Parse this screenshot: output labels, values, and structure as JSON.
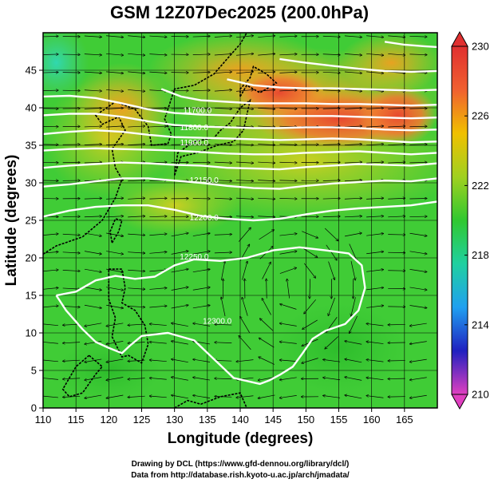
{
  "title": "GSM 12Z07Dec2025 (200.0hPa)",
  "xlabel": "Longitude (degrees)",
  "ylabel": "Latitude  (degrees)",
  "credits": [
    "Drawing by DCL (https://www.gfd-dennou.org/library/dcl/)",
    "Data from http://database.rish.kyoto-u.ac.jp/arch/jmadata/"
  ],
  "chart_data": {
    "type": "heatmap",
    "xlim": [
      110,
      170
    ],
    "ylim": [
      0,
      50
    ],
    "xticks": [
      "110",
      "115",
      "120",
      "125",
      "130",
      "135",
      "140",
      "145",
      "150",
      "155",
      "160",
      "165"
    ],
    "yticks": [
      "0",
      "5",
      "10",
      "15",
      "20",
      "25",
      "30",
      "35",
      "40",
      "45"
    ],
    "colorbar": {
      "ticks": [
        "210",
        "214",
        "218",
        "222",
        "226",
        "230"
      ],
      "range": [
        210,
        230
      ],
      "colors": [
        "#e040c0",
        "#2020c0",
        "#20a0f0",
        "#20d0a0",
        "#30c830",
        "#a0d020",
        "#f0c000",
        "#f06030",
        "#e03030"
      ]
    },
    "grid": true,
    "contour_labels": [
      {
        "text": "12300.0",
        "lon": 136.5,
        "lat": 11.2
      },
      {
        "text": "12250.0",
        "lon": 133.0,
        "lat": 19.8
      },
      {
        "text": "12200.0",
        "lon": 134.5,
        "lat": 25.0
      },
      {
        "text": "12150.0",
        "lon": 134.5,
        "lat": 30.0
      },
      {
        "text": "11700.0",
        "lon": 133.5,
        "lat": 39.3
      },
      {
        "text": "11800.0",
        "lon": 133.0,
        "lat": 37.0
      },
      {
        "text": "11900.0",
        "lon": 133.0,
        "lat": 35.0
      }
    ],
    "contours": [
      {
        "name": "c12300",
        "points": [
          [
            112,
            15
          ],
          [
            115,
            15.5
          ],
          [
            118,
            17
          ],
          [
            121,
            17.6
          ],
          [
            124,
            17.2
          ],
          [
            127,
            17.5
          ],
          [
            130,
            19
          ],
          [
            133,
            19.8
          ],
          [
            137,
            19.6
          ],
          [
            141,
            20
          ],
          [
            145,
            21
          ],
          [
            149,
            21.4
          ],
          [
            153,
            21
          ],
          [
            156.5,
            20.6
          ],
          [
            158.5,
            19
          ],
          [
            159,
            16
          ],
          [
            158,
            13
          ],
          [
            156,
            11.2
          ],
          [
            153,
            10.3
          ],
          [
            151,
            9.2
          ],
          [
            149.5,
            7.3
          ],
          [
            148,
            5.5
          ],
          [
            146,
            4.4
          ],
          [
            144.5,
            3.7
          ],
          [
            143,
            3.2
          ],
          [
            139,
            4
          ],
          [
            136,
            6.5
          ],
          [
            133,
            9
          ],
          [
            129,
            10
          ],
          [
            125,
            9.6
          ],
          [
            123.2,
            8.3
          ],
          [
            122,
            7.3
          ],
          [
            120,
            8
          ],
          [
            118,
            8.8
          ],
          [
            116,
            10.5
          ],
          [
            115,
            11.5
          ],
          [
            113.5,
            13
          ],
          [
            112,
            15
          ]
        ]
      },
      {
        "name": "c12250",
        "points": [
          [
            110,
            25.5
          ],
          [
            114,
            26.3
          ],
          [
            118,
            26.8
          ],
          [
            122,
            27
          ],
          [
            126,
            27
          ],
          [
            130,
            26.4
          ],
          [
            134,
            25.6
          ],
          [
            138,
            25.2
          ],
          [
            142,
            25
          ],
          [
            146,
            25.2
          ],
          [
            150,
            25.8
          ],
          [
            154,
            26.3
          ],
          [
            158,
            26.6
          ],
          [
            162,
            26.8
          ],
          [
            166,
            27
          ],
          [
            170,
            27.5
          ]
        ]
      },
      {
        "name": "c12200",
        "points": [
          [
            110,
            29.5
          ],
          [
            114,
            29.8
          ],
          [
            118,
            30.2
          ],
          [
            122,
            30.6
          ],
          [
            126,
            30.6
          ],
          [
            130,
            30.3
          ],
          [
            134,
            30
          ],
          [
            138,
            29.6
          ],
          [
            142,
            29.3
          ],
          [
            146,
            29.2
          ],
          [
            150,
            29.6
          ],
          [
            154,
            29.9
          ],
          [
            158,
            30.1
          ],
          [
            162,
            30.3
          ],
          [
            166,
            30.2
          ],
          [
            170,
            30.6
          ]
        ]
      },
      {
        "name": "c12150",
        "points": [
          [
            110,
            32
          ],
          [
            114,
            32.3
          ],
          [
            118,
            32.5
          ],
          [
            122,
            32.7
          ],
          [
            126,
            32.6
          ],
          [
            130,
            32.4
          ],
          [
            134,
            32.3
          ],
          [
            138,
            32
          ],
          [
            142,
            31.9
          ],
          [
            146,
            31.8
          ],
          [
            150,
            32.1
          ],
          [
            154,
            32.3
          ],
          [
            158,
            32.5
          ],
          [
            162,
            32.4
          ],
          [
            166,
            32.3
          ],
          [
            170,
            32.6
          ]
        ]
      },
      {
        "name": "c12100",
        "points": [
          [
            110,
            34.3
          ],
          [
            114,
            34.5
          ],
          [
            118,
            34.6
          ],
          [
            122,
            34.5
          ],
          [
            126,
            34.4
          ],
          [
            130,
            34.3
          ],
          [
            134,
            34.1
          ],
          [
            138,
            33.9
          ],
          [
            142,
            33.8
          ],
          [
            146,
            33.8
          ],
          [
            150,
            34
          ],
          [
            154,
            34.1
          ],
          [
            158,
            34.2
          ],
          [
            162,
            34
          ],
          [
            166,
            33.8
          ],
          [
            170,
            34
          ]
        ]
      },
      {
        "name": "c12000",
        "points": [
          [
            110,
            36.5
          ],
          [
            114,
            36.8
          ],
          [
            118,
            37
          ],
          [
            122,
            36.8
          ],
          [
            126,
            36.4
          ],
          [
            130,
            36.1
          ],
          [
            134,
            36
          ],
          [
            138,
            35.9
          ],
          [
            142,
            35.8
          ],
          [
            146,
            35.7
          ],
          [
            150,
            35.8
          ],
          [
            154,
            35.9
          ],
          [
            158,
            35.8
          ],
          [
            162,
            35.6
          ],
          [
            166,
            35.4
          ],
          [
            170,
            35.5
          ]
        ]
      },
      {
        "name": "c11900",
        "points": [
          [
            110,
            39
          ],
          [
            114,
            39.2
          ],
          [
            118,
            39.2
          ],
          [
            122,
            38.8
          ],
          [
            126,
            38.2
          ],
          [
            130,
            37.7
          ],
          [
            134,
            37.5
          ],
          [
            138,
            37.4
          ],
          [
            142,
            37.3
          ],
          [
            146,
            37.3
          ],
          [
            150,
            37.4
          ],
          [
            154,
            37.4
          ],
          [
            158,
            37.3
          ],
          [
            162,
            37.1
          ],
          [
            166,
            37
          ],
          [
            170,
            37.1
          ]
        ]
      },
      {
        "name": "c11800",
        "points": [
          [
            110,
            41.5
          ],
          [
            114,
            41.6
          ],
          [
            118,
            41.3
          ],
          [
            122,
            40.6
          ],
          [
            126,
            39.8
          ],
          [
            130,
            39.3
          ],
          [
            134,
            39.1
          ],
          [
            138,
            39
          ],
          [
            142,
            38.9
          ],
          [
            146,
            38.9
          ],
          [
            150,
            38.9
          ],
          [
            154,
            38.9
          ],
          [
            158,
            38.8
          ],
          [
            162,
            38.7
          ],
          [
            166,
            38.6
          ],
          [
            170,
            38.7
          ]
        ]
      },
      {
        "name": "c11700",
        "points": [
          [
            128,
            42.5
          ],
          [
            131,
            41.5
          ],
          [
            134,
            41
          ],
          [
            138,
            40.8
          ],
          [
            142,
            40.6
          ],
          [
            146,
            40.6
          ],
          [
            150,
            40.6
          ],
          [
            154,
            40.5
          ],
          [
            158,
            40.5
          ],
          [
            162,
            40.4
          ],
          [
            166,
            40.3
          ],
          [
            170,
            40.4
          ]
        ]
      },
      {
        "name": "c11600",
        "points": [
          [
            138,
            43.8
          ],
          [
            142,
            43
          ],
          [
            146,
            42.7
          ],
          [
            150,
            42.6
          ],
          [
            154,
            42.6
          ],
          [
            158,
            42.5
          ],
          [
            162,
            42.4
          ],
          [
            166,
            42.3
          ],
          [
            170,
            42.4
          ]
        ]
      },
      {
        "name": "c11500",
        "points": [
          [
            146,
            46.5
          ],
          [
            150,
            46
          ],
          [
            154,
            45.6
          ],
          [
            158,
            45.2
          ],
          [
            162,
            44.9
          ],
          [
            166,
            44.8
          ],
          [
            170,
            44.9
          ]
        ]
      },
      {
        "name": "c11400",
        "points": [
          [
            162,
            48.8
          ],
          [
            165,
            48.4
          ],
          [
            168,
            48.2
          ],
          [
            170,
            48.1
          ]
        ]
      }
    ]
  }
}
